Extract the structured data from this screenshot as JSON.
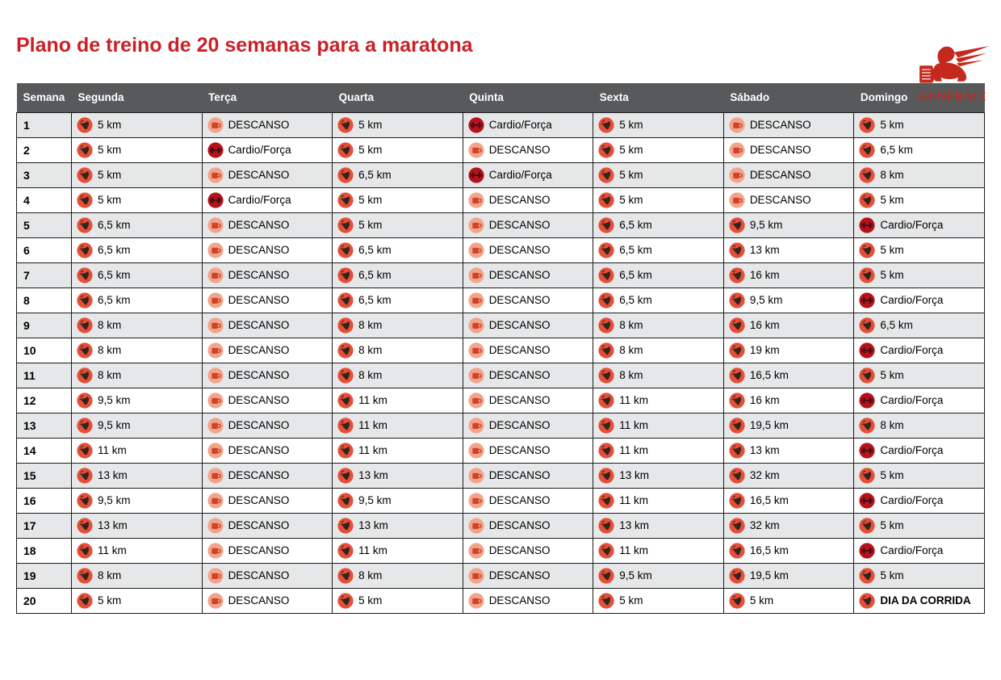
{
  "page": {
    "title": "Plano de treino de 20 semanas para a maratona"
  },
  "logo": {
    "brand": "GENERALI",
    "mark": "winged-lion"
  },
  "colors": {
    "title_red": "#cb2026",
    "brand_red": "#c5281c",
    "header_bg": "#58595b",
    "row_alt_bg": "#e6e7e8",
    "grid_line": "#1d1d1b",
    "run_icon_bg": "#e54f38",
    "rest_icon_bg": "#f2a48c",
    "rest_icon_glyph": "#cf4426",
    "cardio_icon_bg": "#b5121b",
    "text": "#000000"
  },
  "icons": {
    "run": "running-shoe-icon",
    "rest": "rest-mug-icon",
    "cardio": "dumbbell-icon",
    "race": "running-shoe-icon"
  },
  "table": {
    "columns": [
      "Semana",
      "Segunda",
      "Terça",
      "Quarta",
      "Quinta",
      "Sexta",
      "Sábado",
      "Domingo"
    ],
    "rows": [
      {
        "week": "1",
        "days": [
          {
            "type": "run",
            "label": "5 km"
          },
          {
            "type": "rest",
            "label": "DESCANSO"
          },
          {
            "type": "run",
            "label": "5 km"
          },
          {
            "type": "cardio",
            "label": "Cardio/Força"
          },
          {
            "type": "run",
            "label": "5 km"
          },
          {
            "type": "rest",
            "label": "DESCANSO"
          },
          {
            "type": "run",
            "label": "5 km"
          }
        ]
      },
      {
        "week": "2",
        "days": [
          {
            "type": "run",
            "label": "5 km"
          },
          {
            "type": "cardio",
            "label": "Cardio/Força"
          },
          {
            "type": "run",
            "label": "5 km"
          },
          {
            "type": "rest",
            "label": "DESCANSO"
          },
          {
            "type": "run",
            "label": "5 km"
          },
          {
            "type": "rest",
            "label": "DESCANSO"
          },
          {
            "type": "run",
            "label": "6,5 km"
          }
        ]
      },
      {
        "week": "3",
        "days": [
          {
            "type": "run",
            "label": "5 km"
          },
          {
            "type": "rest",
            "label": "DESCANSO"
          },
          {
            "type": "run",
            "label": "6,5 km"
          },
          {
            "type": "cardio",
            "label": "Cardio/Força"
          },
          {
            "type": "run",
            "label": "5 km"
          },
          {
            "type": "rest",
            "label": "DESCANSO"
          },
          {
            "type": "run",
            "label": "8 km"
          }
        ]
      },
      {
        "week": "4",
        "days": [
          {
            "type": "run",
            "label": "5 km"
          },
          {
            "type": "cardio",
            "label": "Cardio/Força"
          },
          {
            "type": "run",
            "label": "5 km"
          },
          {
            "type": "rest",
            "label": "DESCANSO"
          },
          {
            "type": "run",
            "label": "5 km"
          },
          {
            "type": "rest",
            "label": "DESCANSO"
          },
          {
            "type": "run",
            "label": "5 km"
          }
        ]
      },
      {
        "week": "5",
        "days": [
          {
            "type": "run",
            "label": "6,5 km"
          },
          {
            "type": "rest",
            "label": "DESCANSO"
          },
          {
            "type": "run",
            "label": "5 km"
          },
          {
            "type": "rest",
            "label": "DESCANSO"
          },
          {
            "type": "run",
            "label": "6,5 km"
          },
          {
            "type": "run",
            "label": "9,5 km"
          },
          {
            "type": "cardio",
            "label": "Cardio/Força"
          }
        ]
      },
      {
        "week": "6",
        "days": [
          {
            "type": "run",
            "label": "6,5 km"
          },
          {
            "type": "rest",
            "label": "DESCANSO"
          },
          {
            "type": "run",
            "label": "6,5 km"
          },
          {
            "type": "rest",
            "label": "DESCANSO"
          },
          {
            "type": "run",
            "label": "6,5 km"
          },
          {
            "type": "run",
            "label": "13 km"
          },
          {
            "type": "run",
            "label": "5 km"
          }
        ]
      },
      {
        "week": "7",
        "days": [
          {
            "type": "run",
            "label": "6,5 km"
          },
          {
            "type": "rest",
            "label": "DESCANSO"
          },
          {
            "type": "run",
            "label": "6,5 km"
          },
          {
            "type": "rest",
            "label": "DESCANSO"
          },
          {
            "type": "run",
            "label": "6,5 km"
          },
          {
            "type": "run",
            "label": "16 km"
          },
          {
            "type": "run",
            "label": "5 km"
          }
        ]
      },
      {
        "week": "8",
        "days": [
          {
            "type": "run",
            "label": "6,5 km"
          },
          {
            "type": "rest",
            "label": "DESCANSO"
          },
          {
            "type": "run",
            "label": "6,5 km"
          },
          {
            "type": "rest",
            "label": "DESCANSO"
          },
          {
            "type": "run",
            "label": "6,5 km"
          },
          {
            "type": "run",
            "label": "9,5 km"
          },
          {
            "type": "cardio",
            "label": "Cardio/Força"
          }
        ]
      },
      {
        "week": "9",
        "days": [
          {
            "type": "run",
            "label": "8 km"
          },
          {
            "type": "rest",
            "label": "DESCANSO"
          },
          {
            "type": "run",
            "label": "8 km"
          },
          {
            "type": "rest",
            "label": "DESCANSO"
          },
          {
            "type": "run",
            "label": "8 km"
          },
          {
            "type": "run",
            "label": "16 km"
          },
          {
            "type": "run",
            "label": "6,5 km"
          }
        ]
      },
      {
        "week": "10",
        "days": [
          {
            "type": "run",
            "label": "8 km"
          },
          {
            "type": "rest",
            "label": "DESCANSO"
          },
          {
            "type": "run",
            "label": "8 km"
          },
          {
            "type": "rest",
            "label": "DESCANSO"
          },
          {
            "type": "run",
            "label": "8 km"
          },
          {
            "type": "run",
            "label": "19 km"
          },
          {
            "type": "cardio",
            "label": "Cardio/Força"
          }
        ]
      },
      {
        "week": "11",
        "days": [
          {
            "type": "run",
            "label": "8 km"
          },
          {
            "type": "rest",
            "label": "DESCANSO"
          },
          {
            "type": "run",
            "label": "8 km"
          },
          {
            "type": "rest",
            "label": "DESCANSO"
          },
          {
            "type": "run",
            "label": "8 km"
          },
          {
            "type": "run",
            "label": "16,5 km"
          },
          {
            "type": "run",
            "label": "5 km"
          }
        ]
      },
      {
        "week": "12",
        "days": [
          {
            "type": "run",
            "label": "9,5 km"
          },
          {
            "type": "rest",
            "label": "DESCANSO"
          },
          {
            "type": "run",
            "label": "11 km"
          },
          {
            "type": "rest",
            "label": "DESCANSO"
          },
          {
            "type": "run",
            "label": "11 km"
          },
          {
            "type": "run",
            "label": "16 km"
          },
          {
            "type": "cardio",
            "label": "Cardio/Força"
          }
        ]
      },
      {
        "week": "13",
        "days": [
          {
            "type": "run",
            "label": "9,5 km"
          },
          {
            "type": "rest",
            "label": "DESCANSO"
          },
          {
            "type": "run",
            "label": "11 km"
          },
          {
            "type": "rest",
            "label": "DESCANSO"
          },
          {
            "type": "run",
            "label": "11 km"
          },
          {
            "type": "run",
            "label": "19,5 km"
          },
          {
            "type": "run",
            "label": "8 km"
          }
        ]
      },
      {
        "week": "14",
        "days": [
          {
            "type": "run",
            "label": "11 km"
          },
          {
            "type": "rest",
            "label": "DESCANSO"
          },
          {
            "type": "run",
            "label": "11 km"
          },
          {
            "type": "rest",
            "label": "DESCANSO"
          },
          {
            "type": "run",
            "label": "11 km"
          },
          {
            "type": "run",
            "label": "13 km"
          },
          {
            "type": "cardio",
            "label": "Cardio/Força"
          }
        ]
      },
      {
        "week": "15",
        "days": [
          {
            "type": "run",
            "label": "13 km"
          },
          {
            "type": "rest",
            "label": "DESCANSO"
          },
          {
            "type": "run",
            "label": "13 km"
          },
          {
            "type": "rest",
            "label": "DESCANSO"
          },
          {
            "type": "run",
            "label": "13 km"
          },
          {
            "type": "run",
            "label": "32 km"
          },
          {
            "type": "run",
            "label": "5 km"
          }
        ]
      },
      {
        "week": "16",
        "days": [
          {
            "type": "run",
            "label": "9,5 km"
          },
          {
            "type": "rest",
            "label": "DESCANSO"
          },
          {
            "type": "run",
            "label": "9,5 km"
          },
          {
            "type": "rest",
            "label": "DESCANSO"
          },
          {
            "type": "run",
            "label": "11 km"
          },
          {
            "type": "run",
            "label": "16,5 km"
          },
          {
            "type": "cardio",
            "label": "Cardio/Força"
          }
        ]
      },
      {
        "week": "17",
        "days": [
          {
            "type": "run",
            "label": "13 km"
          },
          {
            "type": "rest",
            "label": "DESCANSO"
          },
          {
            "type": "run",
            "label": "13 km"
          },
          {
            "type": "rest",
            "label": "DESCANSO"
          },
          {
            "type": "run",
            "label": "13 km"
          },
          {
            "type": "run",
            "label": "32 km"
          },
          {
            "type": "run",
            "label": "5 km"
          }
        ]
      },
      {
        "week": "18",
        "days": [
          {
            "type": "run",
            "label": "11 km"
          },
          {
            "type": "rest",
            "label": "DESCANSO"
          },
          {
            "type": "run",
            "label": "11 km"
          },
          {
            "type": "rest",
            "label": "DESCANSO"
          },
          {
            "type": "run",
            "label": "11 km"
          },
          {
            "type": "run",
            "label": "16,5 km"
          },
          {
            "type": "cardio",
            "label": "Cardio/Força"
          }
        ]
      },
      {
        "week": "19",
        "days": [
          {
            "type": "run",
            "label": "8 km"
          },
          {
            "type": "rest",
            "label": "DESCANSO"
          },
          {
            "type": "run",
            "label": "8 km"
          },
          {
            "type": "rest",
            "label": "DESCANSO"
          },
          {
            "type": "run",
            "label": "9,5 km"
          },
          {
            "type": "run",
            "label": "19,5 km"
          },
          {
            "type": "run",
            "label": "5 km"
          }
        ]
      },
      {
        "week": "20",
        "days": [
          {
            "type": "run",
            "label": "5 km"
          },
          {
            "type": "rest",
            "label": "DESCANSO"
          },
          {
            "type": "run",
            "label": "5 km"
          },
          {
            "type": "rest",
            "label": "DESCANSO"
          },
          {
            "type": "run",
            "label": "5 km"
          },
          {
            "type": "run",
            "label": "5 km"
          },
          {
            "type": "race",
            "label": "DIA DA CORRIDA"
          }
        ]
      }
    ]
  }
}
